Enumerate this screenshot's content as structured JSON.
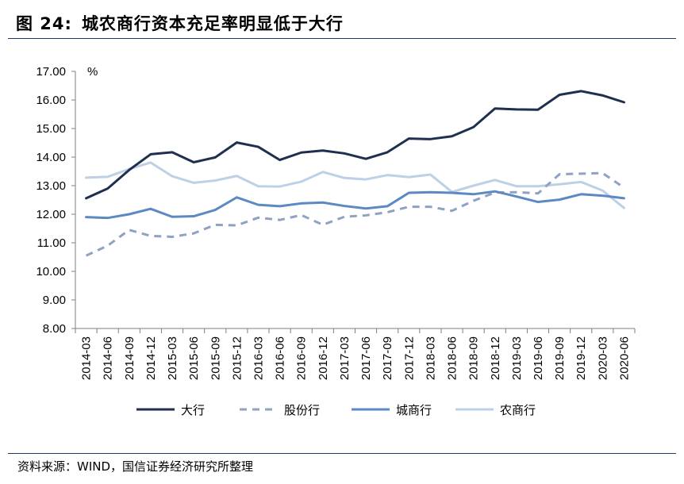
{
  "header": {
    "figure_label": "图 24:",
    "title": "城农商行资本充足率明显低于大行"
  },
  "footer": {
    "source": "资料来源：WIND，国信证券经济研究所整理"
  },
  "chart_data": {
    "type": "line",
    "title": "城农商行资本充足率明显低于大行",
    "ylabel": "%",
    "xlabel": "",
    "ylim": [
      8.0,
      17.0
    ],
    "y_ticks": [
      "8.00",
      "9.00",
      "10.00",
      "11.00",
      "12.00",
      "13.00",
      "14.00",
      "15.00",
      "16.00",
      "17.00"
    ],
    "categories": [
      "2014-03",
      "2014-06",
      "2014-09",
      "2014-12",
      "2015-03",
      "2015-06",
      "2015-09",
      "2015-12",
      "2016-03",
      "2016-06",
      "2016-09",
      "2016-12",
      "2017-03",
      "2017-06",
      "2017-09",
      "2017-12",
      "2018-03",
      "2018-06",
      "2018-09",
      "2018-12",
      "2019-03",
      "2019-06",
      "2019-09",
      "2019-12",
      "2020-03",
      "2020-06"
    ],
    "legend_position": "bottom",
    "series": [
      {
        "name": "大行",
        "color": "#1f2f4f",
        "style": "solid",
        "values": [
          12.56,
          12.9,
          13.55,
          14.1,
          14.17,
          13.82,
          13.99,
          14.51,
          14.36,
          13.9,
          14.16,
          14.23,
          14.13,
          13.94,
          14.17,
          14.65,
          14.63,
          14.73,
          15.05,
          15.7,
          15.67,
          15.66,
          16.18,
          16.31,
          16.16,
          15.92
        ]
      },
      {
        "name": "股份行",
        "color": "#8ea2c2",
        "style": "dashed",
        "values": [
          10.55,
          10.9,
          11.45,
          11.24,
          11.21,
          11.33,
          11.63,
          11.61,
          11.88,
          11.8,
          11.97,
          11.63,
          11.91,
          11.96,
          12.07,
          12.26,
          12.26,
          12.12,
          12.47,
          12.76,
          12.77,
          12.73,
          13.4,
          13.42,
          13.44,
          12.93
        ]
      },
      {
        "name": "城商行",
        "color": "#5b89c2",
        "style": "solid",
        "values": [
          11.9,
          11.87,
          12.0,
          12.19,
          11.91,
          11.93,
          12.15,
          12.59,
          12.33,
          12.28,
          12.38,
          12.41,
          12.29,
          12.2,
          12.28,
          12.75,
          12.77,
          12.75,
          12.7,
          12.8,
          12.62,
          12.43,
          12.51,
          12.7,
          12.65,
          12.56
        ]
      },
      {
        "name": "农商行",
        "color": "#bdd0e6",
        "style": "solid",
        "values": [
          13.28,
          13.31,
          13.58,
          13.81,
          13.33,
          13.1,
          13.18,
          13.34,
          12.98,
          12.97,
          13.14,
          13.48,
          13.27,
          13.22,
          13.37,
          13.3,
          13.39,
          12.78,
          13.0,
          13.2,
          12.98,
          12.98,
          13.05,
          13.13,
          12.83,
          12.22
        ]
      }
    ]
  }
}
